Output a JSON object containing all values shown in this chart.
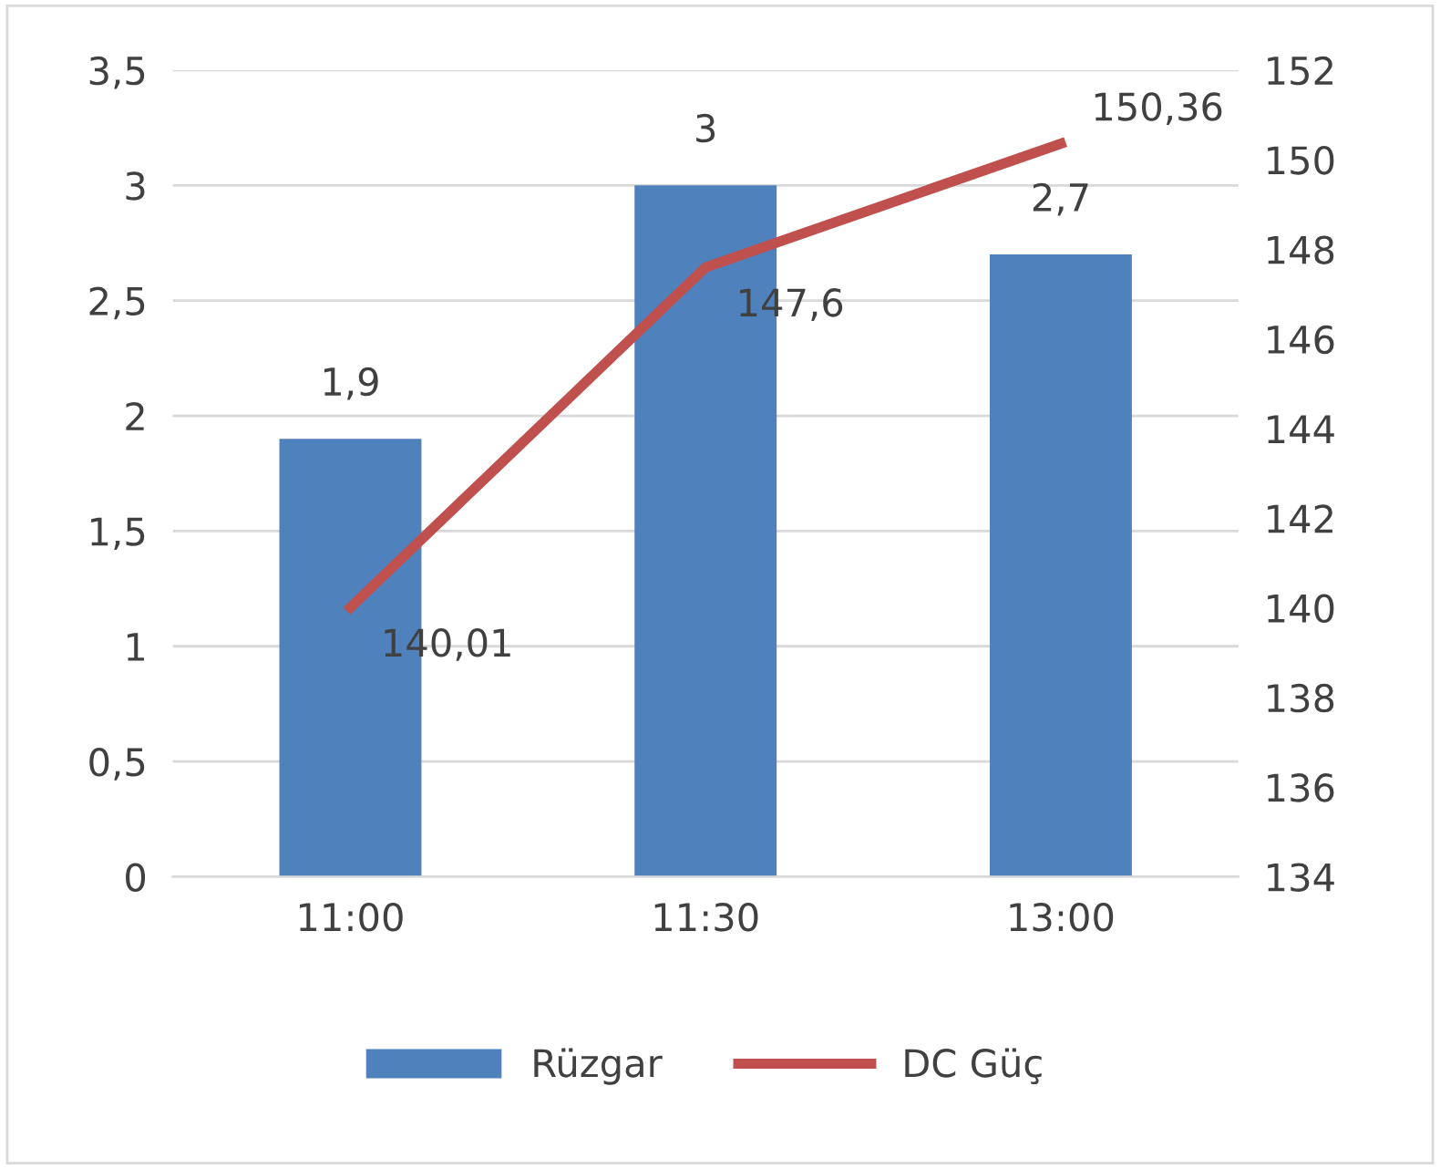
{
  "chart_data": {
    "type": "bar",
    "categories": [
      "11:00",
      "11:30",
      "13:00"
    ],
    "series": [
      {
        "name": "Rüzgar",
        "color": "#4f81bd",
        "values": [
          1.9,
          3,
          2.7
        ],
        "value_labels": [
          "1,9",
          "3",
          "2,7"
        ]
      },
      {
        "name": "DC Güç",
        "type": "line",
        "axis": "y2",
        "color": "#c0504d",
        "values": [
          140.01,
          147.6,
          150.36
        ],
        "value_labels": [
          "140,01",
          "147,6",
          "150,36"
        ]
      }
    ],
    "ylim": [
      0,
      3.5
    ],
    "yticks": [
      0,
      {
        "value": 0.5,
        "label": "0,5"
      },
      1,
      {
        "value": 1.5,
        "label": "1,5"
      },
      2,
      {
        "value": 2.5,
        "label": "2,5"
      },
      3,
      {
        "value": 3.5,
        "label": "3,5"
      }
    ],
    "y2lim": [
      134,
      152
    ],
    "y2ticks": [
      134,
      136,
      138,
      140,
      142,
      144,
      146,
      148,
      150,
      152
    ],
    "grid": "y",
    "legend": "bottom",
    "marker": "none",
    "line_style": "solid"
  }
}
